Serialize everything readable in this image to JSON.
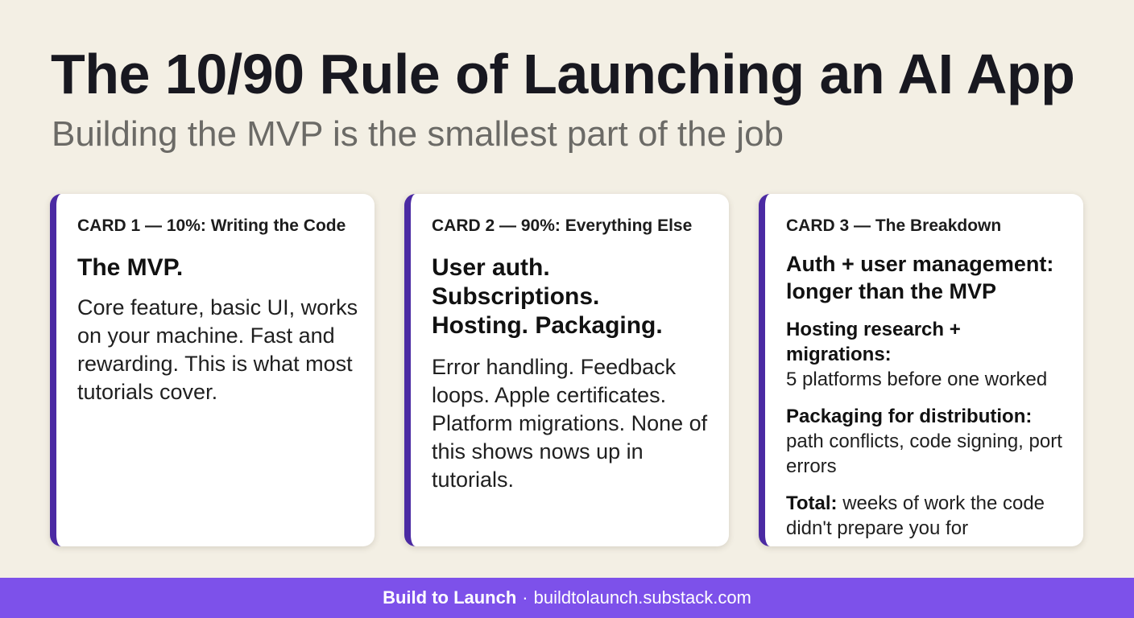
{
  "header": {
    "title": "The 10/90 Rule of Launching an AI App",
    "subtitle": "Building the MVP is the smallest part of the job"
  },
  "cards": [
    {
      "label": "CARD 1 — 10%: Writing the Code",
      "heading": "The MVP.",
      "body": "Core feature, basic UI, works on your machine. Fast and rewarding. This is what most tutorials cover."
    },
    {
      "label": "CARD 2 — 90%: Everything Else",
      "heading_lines": [
        "User auth.",
        "Subscriptions.",
        "Hosting. Packaging."
      ],
      "body": "Error handling. Feedback loops. Apple certificates. Platform migrations. None of this shows nows up in tutorials."
    },
    {
      "label": "CARD 3 — The Breakdown",
      "heading": "Auth + user management: longer than the MVP",
      "items": [
        {
          "title": "Hosting research + migrations:",
          "detail": "5 platforms before one worked"
        },
        {
          "title": "Packaging for distribution:",
          "detail": "path conflicts, code signing, port errors"
        },
        {
          "title": "Total:",
          "detail": "weeks of work the code didn't prepare you for"
        }
      ]
    }
  ],
  "footer": {
    "brand": "Build to Launch",
    "separator": "·",
    "url": "buildtolaunch.substack.com"
  },
  "colors": {
    "background": "#f3efe4",
    "accent": "#4b2aa3",
    "footer": "#7d51ea"
  }
}
